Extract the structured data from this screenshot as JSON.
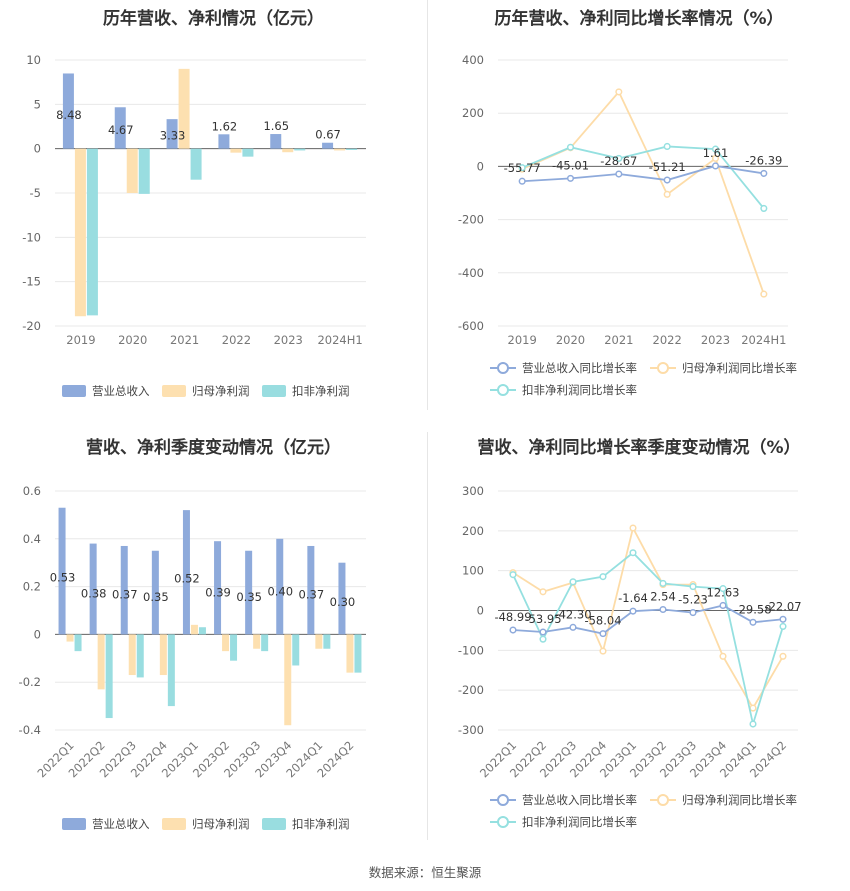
{
  "colors": {
    "revenue": "#8eaadb",
    "net": "#fde0b0",
    "deducted": "#99dde0",
    "rev_line": "#8eaadb",
    "net_line": "#fddca8",
    "ded_line": "#95e0e0",
    "grid": "#e8e8e8",
    "axis": "#999999",
    "label": "#333333"
  },
  "source": "数据来源：恒生聚源",
  "chart_data": [
    {
      "type": "bar",
      "title": "历年营收、净利情况（亿元）",
      "categories": [
        "2019",
        "2020",
        "2021",
        "2022",
        "2023",
        "2024H1"
      ],
      "ylim": [
        -20,
        10
      ],
      "yticks": [
        "10",
        "5",
        "0",
        "-5",
        "-10",
        "-15",
        "-20"
      ],
      "series": [
        {
          "name": "营业总收入",
          "values": [
            8.48,
            4.67,
            3.33,
            1.62,
            1.65,
            0.67
          ]
        },
        {
          "name": "归母净利润",
          "values": [
            -18.9,
            -5.0,
            9.0,
            -0.45,
            -0.4,
            -0.2
          ]
        },
        {
          "name": "扣非净利润",
          "values": [
            -18.8,
            -5.1,
            -3.5,
            -0.9,
            -0.2,
            -0.15
          ]
        }
      ],
      "data_labels": [
        "8.48",
        "4.67",
        "3.33",
        "1.62",
        "1.65",
        "0.67"
      ],
      "grid": true,
      "legend": "bottom"
    },
    {
      "type": "line",
      "title": "历年营收、净利同比增长率情况（%）",
      "categories": [
        "2019",
        "2020",
        "2021",
        "2022",
        "2023",
        "2024H1"
      ],
      "ylim": [
        -600,
        400
      ],
      "yticks": [
        "400",
        "200",
        "0",
        "-200",
        "-400",
        "-600"
      ],
      "series": [
        {
          "name": "营业总收入同比增长率",
          "values": [
            -55.77,
            -45.01,
            -28.67,
            -51.21,
            1.61,
            -26.39
          ]
        },
        {
          "name": "归母净利润同比增长率",
          "values": [
            -10,
            70,
            280,
            -105,
            30,
            -480
          ]
        },
        {
          "name": "扣非净利润同比增长率",
          "values": [
            -5,
            72,
            30,
            75,
            65,
            -158
          ]
        }
      ],
      "data_labels": [
        "-55.77",
        "-45.01",
        "-28.67",
        "-51.21",
        "1.61",
        "-26.39"
      ],
      "grid": true,
      "legend": "bottom"
    },
    {
      "type": "bar",
      "title": "营收、净利季度变动情况（亿元）",
      "categories": [
        "2022Q1",
        "2022Q2",
        "2022Q3",
        "2022Q4",
        "2023Q1",
        "2023Q2",
        "2023Q3",
        "2023Q4",
        "2024Q1",
        "2024Q2"
      ],
      "ylim": [
        -0.4,
        0.6
      ],
      "yticks": [
        "0.6",
        "0.4",
        "0.2",
        "0",
        "-0.2",
        "-0.4"
      ],
      "series": [
        {
          "name": "营业总收入",
          "values": [
            0.53,
            0.38,
            0.37,
            0.35,
            0.52,
            0.39,
            0.35,
            0.4,
            0.37,
            0.3
          ]
        },
        {
          "name": "归母净利润",
          "values": [
            -0.03,
            -0.23,
            -0.17,
            -0.17,
            0.04,
            -0.07,
            -0.06,
            -0.38,
            -0.06,
            -0.16
          ]
        },
        {
          "name": "扣非净利润",
          "values": [
            -0.07,
            -0.35,
            -0.18,
            -0.3,
            0.03,
            -0.11,
            -0.07,
            -0.13,
            -0.06,
            -0.16
          ]
        }
      ],
      "data_labels": [
        "0.53",
        "0.38",
        "0.37",
        "0.35",
        "0.52",
        "0.39",
        "0.35",
        "0.40",
        "0.37",
        "0.30"
      ],
      "grid": true,
      "legend": "bottom"
    },
    {
      "type": "line",
      "title": "营收、净利同比增长率季度变动情况（%）",
      "categories": [
        "2022Q1",
        "2022Q2",
        "2022Q3",
        "2022Q4",
        "2023Q1",
        "2023Q2",
        "2023Q3",
        "2023Q4",
        "2024Q1",
        "2024Q2"
      ],
      "ylim": [
        -300,
        300
      ],
      "yticks": [
        "300",
        "200",
        "100",
        "0",
        "-100",
        "-200",
        "-300"
      ],
      "series": [
        {
          "name": "营业总收入同比增长率",
          "values": [
            -48.99,
            -53.95,
            -42.3,
            -58.04,
            -1.64,
            2.54,
            -5.23,
            12.63,
            -29.58,
            -22.07
          ]
        },
        {
          "name": "归母净利润同比增长率",
          "values": [
            95,
            47,
            70,
            -102,
            207,
            65,
            65,
            -115,
            -245,
            -115
          ]
        },
        {
          "name": "扣非净利润同比增长率",
          "values": [
            90,
            -72,
            72,
            85,
            145,
            68,
            60,
            55,
            -285,
            -40
          ]
        }
      ],
      "data_labels": [
        "-48.99",
        "-53.95",
        "-42.30",
        "-58.04",
        "-1.64",
        "2.54",
        "-5.23",
        "12.63",
        "-29.58",
        "-22.07"
      ],
      "grid": true,
      "legend": "bottom"
    }
  ]
}
